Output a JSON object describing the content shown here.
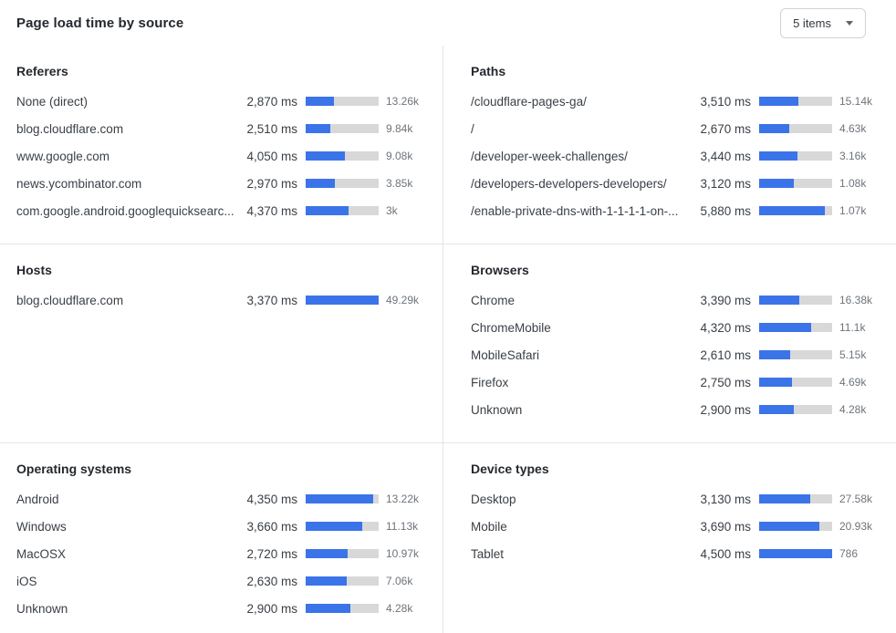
{
  "page": {
    "title": "Page load time by source"
  },
  "toolbar": {
    "items_dropdown": {
      "value": "5 items"
    }
  },
  "colors": {
    "bar_fill": "#3b73e9",
    "bar_track": "#d8d8d8"
  },
  "chart_data": [
    {
      "type": "bar",
      "title": "Referers",
      "unit": "ms",
      "bar_scale_max_ms": 7500,
      "rows": [
        {
          "label": "None (direct)",
          "ms": 2870,
          "ms_label": "2,870 ms",
          "count_label": "13.26k"
        },
        {
          "label": "blog.cloudflare.com",
          "ms": 2510,
          "ms_label": "2,510 ms",
          "count_label": "9.84k"
        },
        {
          "label": "www.google.com",
          "ms": 4050,
          "ms_label": "4,050 ms",
          "count_label": "9.08k"
        },
        {
          "label": "news.ycombinator.com",
          "ms": 2970,
          "ms_label": "2,970 ms",
          "count_label": "3.85k"
        },
        {
          "label": "com.google.android.googlequicksearc...",
          "ms": 4370,
          "ms_label": "4,370 ms",
          "count_label": "3k"
        }
      ]
    },
    {
      "type": "bar",
      "title": "Paths",
      "unit": "ms",
      "bar_scale_max_ms": 6500,
      "rows": [
        {
          "label": "/cloudflare-pages-ga/",
          "ms": 3510,
          "ms_label": "3,510 ms",
          "count_label": "15.14k"
        },
        {
          "label": "/",
          "ms": 2670,
          "ms_label": "2,670 ms",
          "count_label": "4.63k"
        },
        {
          "label": "/developer-week-challenges/",
          "ms": 3440,
          "ms_label": "3,440 ms",
          "count_label": "3.16k"
        },
        {
          "label": "/developers-developers-developers/",
          "ms": 3120,
          "ms_label": "3,120 ms",
          "count_label": "1.08k"
        },
        {
          "label": "/enable-private-dns-with-1-1-1-1-on-...",
          "ms": 5880,
          "ms_label": "5,880 ms",
          "count_label": "1.07k"
        }
      ]
    },
    {
      "type": "bar",
      "title": "Hosts",
      "unit": "ms",
      "bar_scale_max_ms": 3370,
      "rows": [
        {
          "label": "blog.cloudflare.com",
          "ms": 3370,
          "ms_label": "3,370 ms",
          "count_label": "49.29k"
        }
      ]
    },
    {
      "type": "bar",
      "title": "Browsers",
      "unit": "ms",
      "bar_scale_max_ms": 6100,
      "rows": [
        {
          "label": "Chrome",
          "ms": 3390,
          "ms_label": "3,390 ms",
          "count_label": "16.38k"
        },
        {
          "label": "ChromeMobile",
          "ms": 4320,
          "ms_label": "4,320 ms",
          "count_label": "11.1k"
        },
        {
          "label": "MobileSafari",
          "ms": 2610,
          "ms_label": "2,610 ms",
          "count_label": "5.15k"
        },
        {
          "label": "Firefox",
          "ms": 2750,
          "ms_label": "2,750 ms",
          "count_label": "4.69k"
        },
        {
          "label": "Unknown",
          "ms": 2900,
          "ms_label": "2,900 ms",
          "count_label": "4.28k"
        }
      ]
    },
    {
      "type": "bar",
      "title": "Operating systems",
      "unit": "ms",
      "bar_scale_max_ms": 4700,
      "rows": [
        {
          "label": "Android",
          "ms": 4350,
          "ms_label": "4,350 ms",
          "count_label": "13.22k"
        },
        {
          "label": "Windows",
          "ms": 3660,
          "ms_label": "3,660 ms",
          "count_label": "11.13k"
        },
        {
          "label": "MacOSX",
          "ms": 2720,
          "ms_label": "2,720 ms",
          "count_label": "10.97k"
        },
        {
          "label": "iOS",
          "ms": 2630,
          "ms_label": "2,630 ms",
          "count_label": "7.06k"
        },
        {
          "label": "Unknown",
          "ms": 2900,
          "ms_label": "2,900 ms",
          "count_label": "4.28k"
        }
      ]
    },
    {
      "type": "bar",
      "title": "Device types",
      "unit": "ms",
      "bar_scale_max_ms": 4500,
      "rows": [
        {
          "label": "Desktop",
          "ms": 3130,
          "ms_label": "3,130 ms",
          "count_label": "27.58k"
        },
        {
          "label": "Mobile",
          "ms": 3690,
          "ms_label": "3,690 ms",
          "count_label": "20.93k"
        },
        {
          "label": "Tablet",
          "ms": 4500,
          "ms_label": "4,500 ms",
          "count_label": "786"
        }
      ]
    }
  ]
}
